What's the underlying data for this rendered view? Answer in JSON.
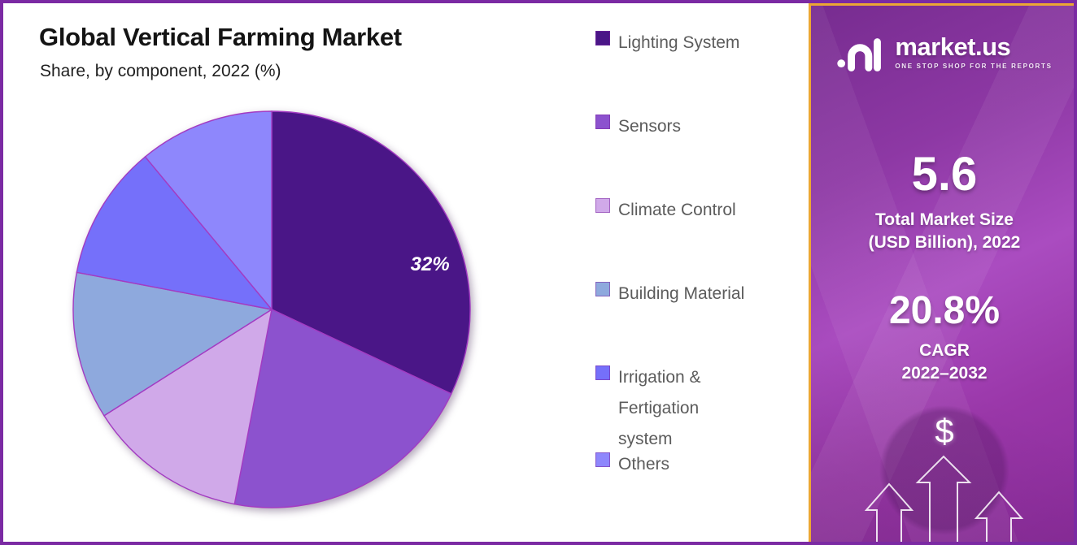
{
  "header": {
    "title": "Global Vertical Farming Market",
    "subtitle": "Share, by component, 2022 (%)"
  },
  "chart_data": {
    "type": "pie",
    "title": "Global Vertical Farming Market",
    "subtitle": "Share, by component, 2022 (%)",
    "unit": "%",
    "labels": [
      "Lighting System",
      "Sensors",
      "Climate Control",
      "Building Material",
      "Irrigation & Fertigation system",
      "Others"
    ],
    "values": [
      32,
      21,
      13,
      12,
      11,
      11
    ],
    "colors": [
      "#4a1687",
      "#8c52ce",
      "#d0a9e9",
      "#8ea9dd",
      "#7570fa",
      "#8e87fc"
    ],
    "slice_border_color": "#a33bc2",
    "start_angle_deg": 0,
    "direction": "clockwise",
    "legend_position": "right",
    "shown_label": {
      "index": 0,
      "text": "32%"
    }
  },
  "brand_panel": {
    "logo_text": "market.us",
    "tagline": "ONE STOP SHOP FOR THE REPORTS",
    "market_size_value": "5.6",
    "market_size_label_line1": "Total Market Size",
    "market_size_label_line2": "(USD Billion), 2022",
    "cagr_value": "20.8%",
    "cagr_label_line1": "CAGR",
    "cagr_label_line2": "2022–2032",
    "dollar_symbol": "$",
    "accent_border_color": "#eca733"
  }
}
